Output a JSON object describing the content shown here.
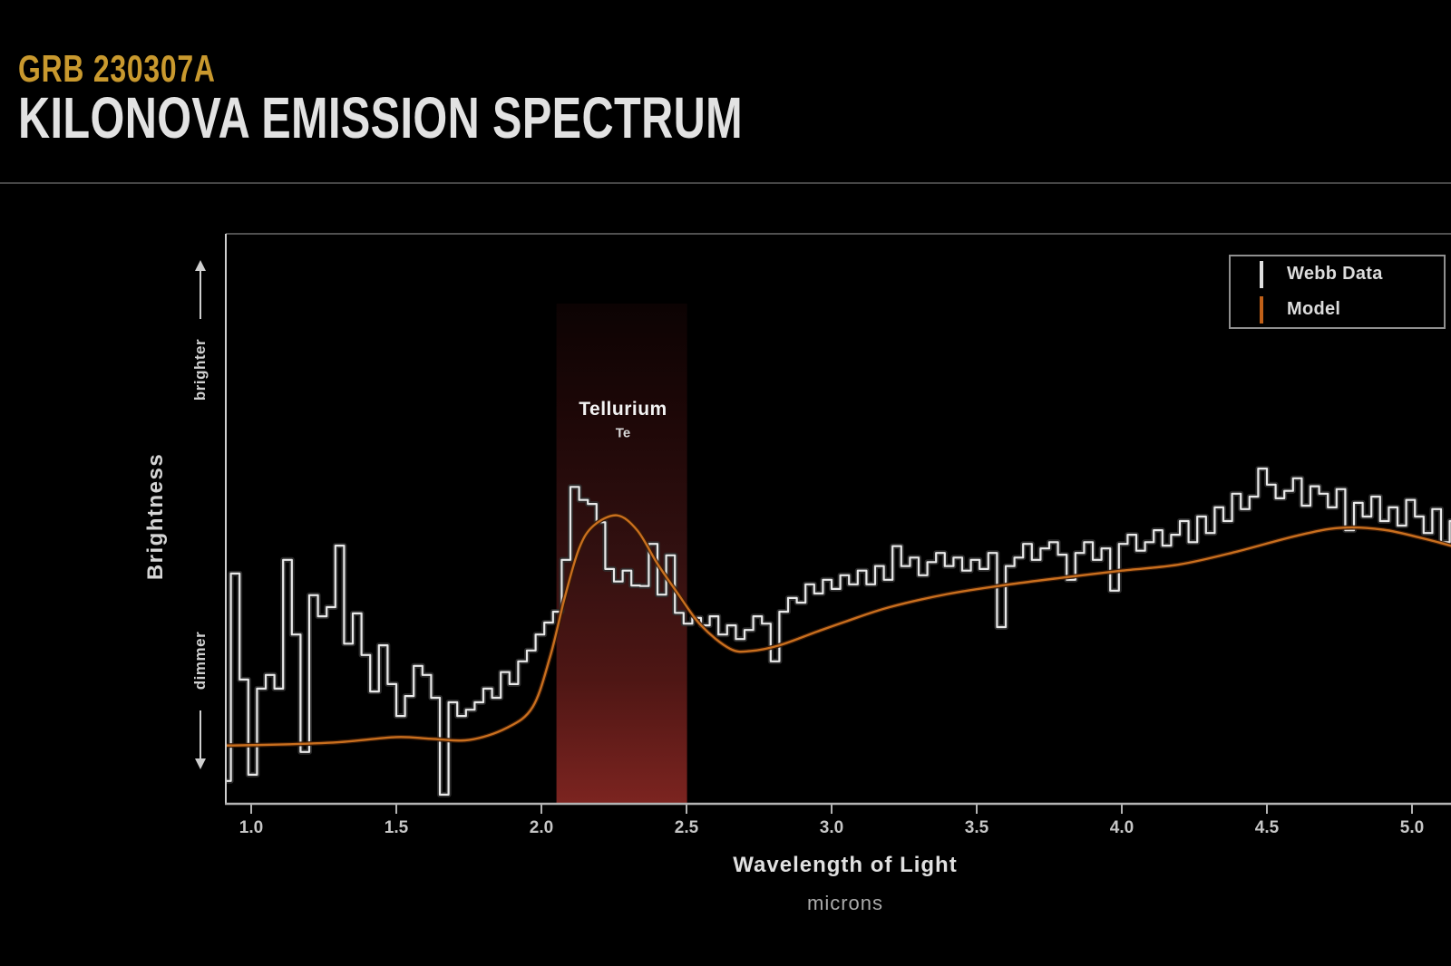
{
  "header": {
    "eyebrow": "GRB 230307A",
    "title": "KILONOVA EMISSION SPECTRUM"
  },
  "y_axis": {
    "label": "Brightness",
    "upper_hint": "brighter",
    "lower_hint": "dimmer"
  },
  "x_axis": {
    "label": "Wavelength of Light",
    "unit_label": "microns",
    "tick_labels": [
      "1.0",
      "1.5",
      "2.0",
      "2.5",
      "3.0",
      "3.5",
      "4.0",
      "4.5",
      "5.0"
    ]
  },
  "legend": {
    "items": [
      {
        "label": "Webb Data",
        "swatch_color": "#dfdfdf"
      },
      {
        "label": "Model",
        "swatch_color": "#c06018"
      }
    ]
  },
  "band_annotation": {
    "name": "Tellurium",
    "symbol": "Te"
  },
  "colors": {
    "accent_gold": "#c9992e",
    "title_white": "#e2e2e2",
    "model_orange": "#c96f1e",
    "data_white": "#e9e9e9",
    "band_red_top": "#0c0303",
    "band_red_bottom": "#7c2420",
    "axis_gray": "#b3b3b3"
  },
  "chart_data": {
    "type": "line",
    "title": "Kilonova Emission Spectrum (GRB 230307A)",
    "xlabel": "Wavelength of Light (microns)",
    "ylabel": "Brightness (relative, dimmer=0 to brighter=1)",
    "xlim": [
      0.9,
      5.19
    ],
    "ylim": [
      0,
      1
    ],
    "x_ticks": [
      1.0,
      1.5,
      2.0,
      2.5,
      3.0,
      3.5,
      4.0,
      4.5,
      5.0
    ],
    "grid": false,
    "legend_position": "top-right",
    "band": {
      "label": "Tellurium",
      "symbol": "Te",
      "x_start": 2.052,
      "x_end": 2.502
    },
    "series": [
      {
        "name": "Webb Data",
        "style": "step",
        "color": "#e9e9e9",
        "x_start": 0.9,
        "x_step": 0.03,
        "y": [
          0.04,
          0.404,
          0.218,
          0.051,
          0.202,
          0.226,
          0.202,
          0.428,
          0.297,
          0.091,
          0.366,
          0.329,
          0.345,
          0.453,
          0.281,
          0.334,
          0.261,
          0.197,
          0.278,
          0.21,
          0.154,
          0.189,
          0.242,
          0.226,
          0.186,
          0.016,
          0.178,
          0.154,
          0.165,
          0.178,
          0.202,
          0.186,
          0.231,
          0.21,
          0.25,
          0.269,
          0.297,
          0.318,
          0.337,
          0.428,
          0.556,
          0.533,
          0.526,
          0.494,
          0.412,
          0.39,
          0.409,
          0.383,
          0.382,
          0.456,
          0.367,
          0.436,
          0.335,
          0.316,
          0.326,
          0.313,
          0.329,
          0.297,
          0.313,
          0.289,
          0.305,
          0.329,
          0.316,
          0.25,
          0.337,
          0.361,
          0.353,
          0.385,
          0.369,
          0.393,
          0.377,
          0.401,
          0.385,
          0.409,
          0.385,
          0.417,
          0.393,
          0.452,
          0.417,
          0.432,
          0.401,
          0.424,
          0.44,
          0.417,
          0.432,
          0.409,
          0.428,
          0.412,
          0.44,
          0.31,
          0.417,
          0.432,
          0.456,
          0.428,
          0.448,
          0.459,
          0.437,
          0.393,
          0.44,
          0.459,
          0.428,
          0.448,
          0.374,
          0.456,
          0.472,
          0.444,
          0.459,
          0.48,
          0.453,
          0.472,
          0.496,
          0.459,
          0.504,
          0.475,
          0.52,
          0.496,
          0.544,
          0.517,
          0.539,
          0.588,
          0.56,
          0.536,
          0.549,
          0.571,
          0.523,
          0.557,
          0.544,
          0.52,
          0.552,
          0.48,
          0.528,
          0.504,
          0.539,
          0.496,
          0.52,
          0.488,
          0.533,
          0.504,
          0.475,
          0.517,
          0.459,
          0.496,
          0.44
        ]
      },
      {
        "name": "Model",
        "style": "smooth",
        "color": "#c96f1e",
        "points": [
          [
            0.9,
            0.102
          ],
          [
            1.1,
            0.104
          ],
          [
            1.3,
            0.108
          ],
          [
            1.5,
            0.117
          ],
          [
            1.62,
            0.114
          ],
          [
            1.75,
            0.112
          ],
          [
            1.88,
            0.133
          ],
          [
            1.97,
            0.17
          ],
          [
            2.03,
            0.258
          ],
          [
            2.08,
            0.361
          ],
          [
            2.13,
            0.448
          ],
          [
            2.18,
            0.488
          ],
          [
            2.26,
            0.506
          ],
          [
            2.33,
            0.48
          ],
          [
            2.4,
            0.421
          ],
          [
            2.47,
            0.369
          ],
          [
            2.55,
            0.313
          ],
          [
            2.65,
            0.272
          ],
          [
            2.72,
            0.268
          ],
          [
            2.82,
            0.278
          ],
          [
            2.95,
            0.302
          ],
          [
            3.05,
            0.32
          ],
          [
            3.2,
            0.345
          ],
          [
            3.4,
            0.368
          ],
          [
            3.6,
            0.384
          ],
          [
            3.8,
            0.397
          ],
          [
            4.0,
            0.409
          ],
          [
            4.2,
            0.42
          ],
          [
            4.4,
            0.443
          ],
          [
            4.6,
            0.47
          ],
          [
            4.75,
            0.484
          ],
          [
            4.9,
            0.481
          ],
          [
            5.05,
            0.464
          ],
          [
            5.16,
            0.449
          ]
        ]
      }
    ]
  }
}
